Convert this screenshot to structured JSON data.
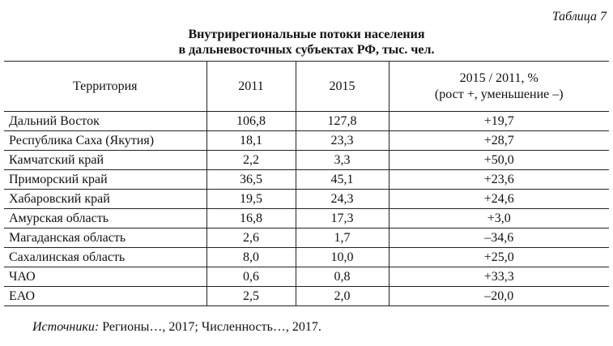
{
  "table_label": "Таблица 7",
  "title": [
    "Внутрирегиональные потоки населения",
    "в дальневосточных субъектах РФ, тыс. чел."
  ],
  "table": {
    "header": [
      "Территория",
      "2011",
      "2015",
      [
        "2015 / 2011, %",
        "(рост +, уменьшение –)"
      ]
    ],
    "rows": [
      [
        "Дальний Восток",
        "106,8",
        "127,8",
        "+19,7"
      ],
      [
        "Республика Саха (Якутия)",
        "18,1",
        "23,3",
        "+28,7"
      ],
      [
        "Камчатский край",
        "2,2",
        "3,3",
        "+50,0"
      ],
      [
        "Приморский край",
        "36,5",
        "45,1",
        "+23,6"
      ],
      [
        "Хабаровский край",
        "19,5",
        "24,3",
        "+24,6"
      ],
      [
        "Амурская область",
        "16,8",
        "17,3",
        "+3,0"
      ],
      [
        "Магаданская область",
        "2,6",
        "1,7",
        "–34,6"
      ],
      [
        "Сахалинская область",
        "8,0",
        "10,0",
        "+25,0"
      ],
      [
        "ЧАО",
        "0,6",
        "0,8",
        "+33,3"
      ],
      [
        "ЕАО",
        "2,5",
        "2,0",
        "–20,0"
      ]
    ]
  },
  "source": {
    "label": "Источники:",
    "text": "Регионы…, 2017; Численность…, 2017."
  }
}
